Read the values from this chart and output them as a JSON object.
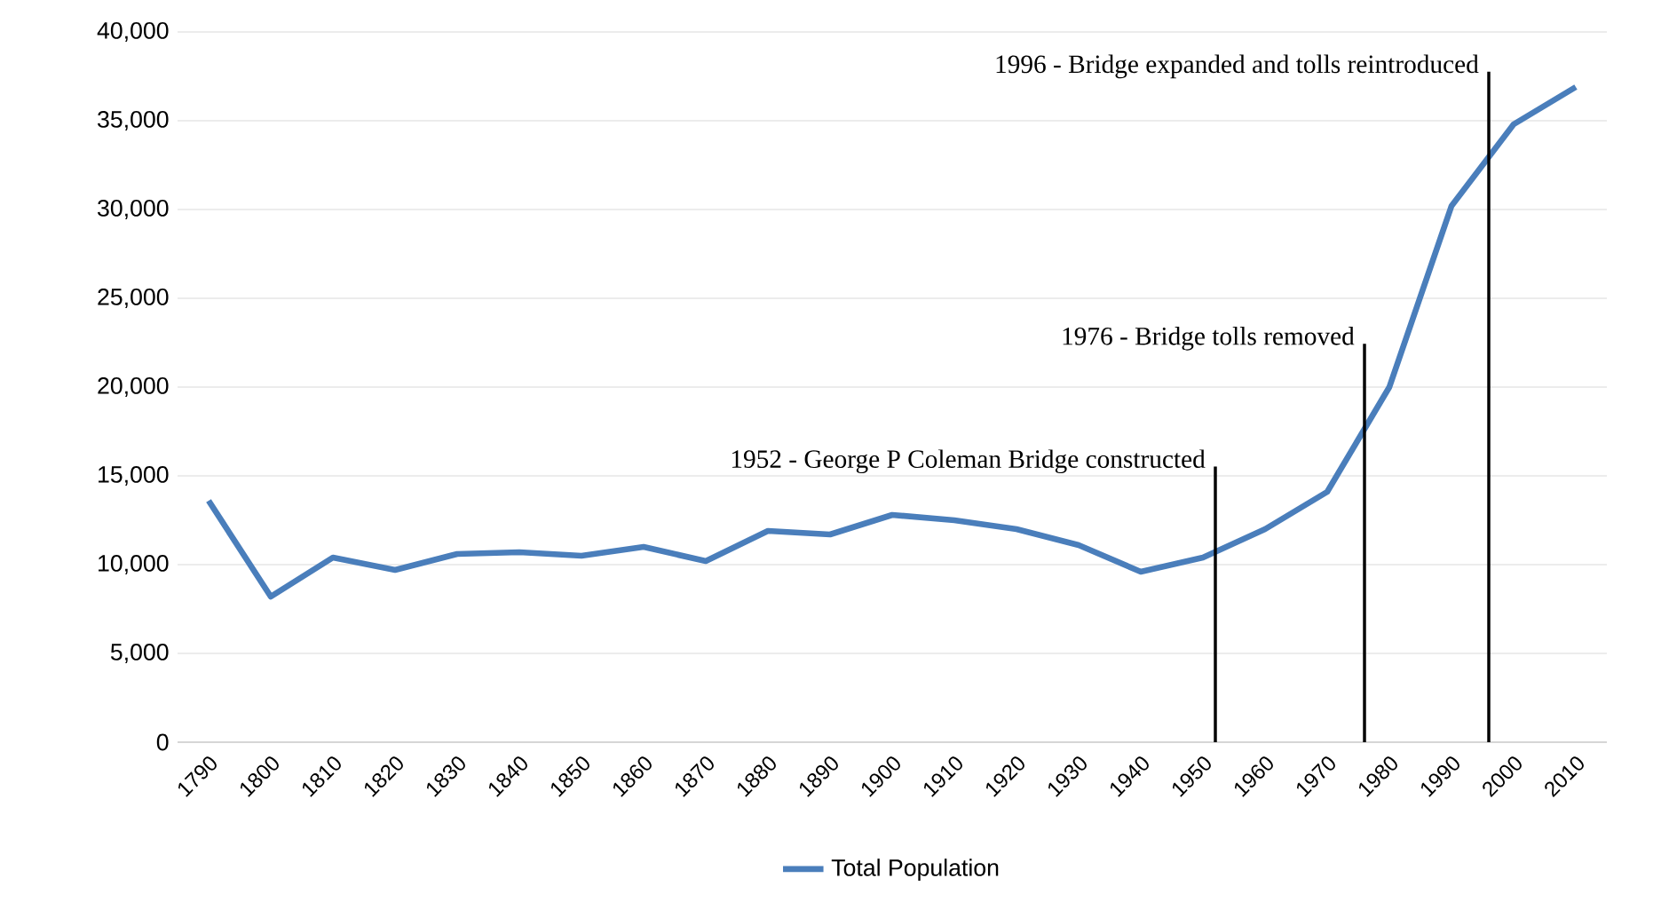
{
  "chart_data": {
    "type": "line",
    "x": [
      1790,
      1800,
      1810,
      1820,
      1830,
      1840,
      1850,
      1860,
      1870,
      1880,
      1890,
      1900,
      1910,
      1920,
      1930,
      1940,
      1950,
      1960,
      1970,
      1980,
      1990,
      2000,
      2010
    ],
    "series": [
      {
        "name": "Total Population",
        "color": "#4a7ebb",
        "values": [
          13600,
          8200,
          10400,
          9700,
          10600,
          10700,
          10500,
          11000,
          10200,
          11900,
          11700,
          12800,
          12500,
          12000,
          11100,
          9600,
          10400,
          12000,
          14100,
          20000,
          30200,
          34800,
          36900
        ]
      }
    ],
    "xlim": [
      1785,
      2015
    ],
    "xticks": [
      1790,
      1800,
      1810,
      1820,
      1830,
      1840,
      1850,
      1860,
      1870,
      1880,
      1890,
      1900,
      1910,
      1920,
      1930,
      1940,
      1950,
      1960,
      1970,
      1980,
      1990,
      2000,
      2010
    ],
    "ylim": [
      0,
      40000
    ],
    "yticks": [
      {
        "value": 0,
        "label": "0"
      },
      {
        "value": 5000,
        "label": "5,000"
      },
      {
        "value": 10000,
        "label": "10,000"
      },
      {
        "value": 15000,
        "label": "15,000"
      },
      {
        "value": 20000,
        "label": "20,000"
      },
      {
        "value": 25000,
        "label": "25,000"
      },
      {
        "value": 30000,
        "label": "30,000"
      },
      {
        "value": 35000,
        "label": "35,000"
      },
      {
        "value": 40000,
        "label": "40,000"
      }
    ],
    "ref_lines": [
      {
        "axis": "x",
        "value": 1952,
        "label": "1952 - George P Coleman Bridge constructed",
        "color": "#000000"
      },
      {
        "axis": "x",
        "value": 1976,
        "label": "1976 - Bridge tolls removed",
        "color": "#000000"
      },
      {
        "axis": "x",
        "value": 1996,
        "label": "1996 - Bridge expanded and tolls reintroduced",
        "color": "#000000"
      }
    ],
    "grid": "y",
    "legend": "bottom",
    "marker": "none",
    "line_style": "solid"
  }
}
